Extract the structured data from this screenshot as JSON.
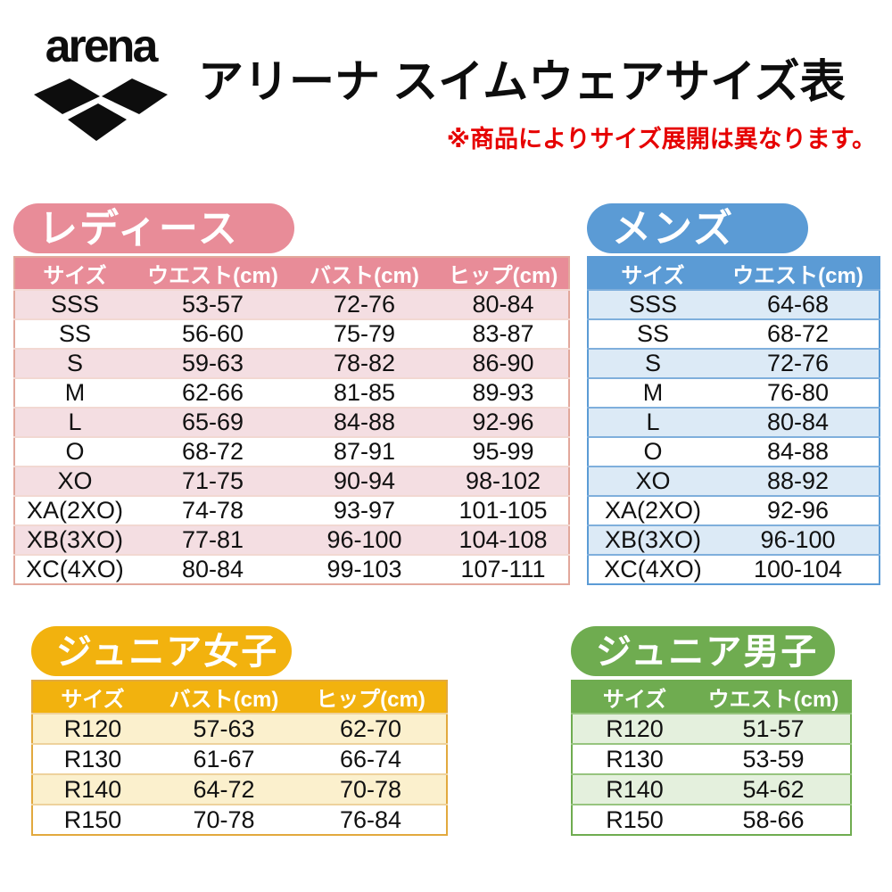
{
  "header": {
    "brand": "arena",
    "title": "アリーナ スイムウェアサイズ表",
    "note": "※商品によりサイズ展開は異なります。",
    "note_color": "#e60000"
  },
  "sections": [
    {
      "id": "ladies",
      "title": "レディース",
      "colors": {
        "accent": "#e88c98",
        "row_alt": "#f4dee2",
        "separator": "#f2d8d2",
        "border": "#e2a89c"
      },
      "columns": [
        "サイズ",
        "ウエスト(cm)",
        "バスト(cm)",
        "ヒップ(cm)"
      ],
      "rows": [
        [
          "SSS",
          "53-57",
          "72-76",
          "80-84"
        ],
        [
          "SS",
          "56-60",
          "75-79",
          "83-87"
        ],
        [
          "S",
          "59-63",
          "78-82",
          "86-90"
        ],
        [
          "M",
          "62-66",
          "81-85",
          "89-93"
        ],
        [
          "L",
          "65-69",
          "84-88",
          "92-96"
        ],
        [
          "O",
          "68-72",
          "87-91",
          "95-99"
        ],
        [
          "XO",
          "71-75",
          "90-94",
          "98-102"
        ],
        [
          "XA(2XO)",
          "74-78",
          "93-97",
          "101-105"
        ],
        [
          "XB(3XO)",
          "77-81",
          "96-100",
          "104-108"
        ],
        [
          "XC(4XO)",
          "80-84",
          "99-103",
          "107-111"
        ]
      ]
    },
    {
      "id": "mens",
      "title": "メンズ",
      "colors": {
        "accent": "#5b9bd5",
        "row_alt": "#dceaf6",
        "separator": "#7fafdc",
        "border": "#5b9bd5"
      },
      "columns": [
        "サイズ",
        "ウエスト(cm)"
      ],
      "rows": [
        [
          "SSS",
          "64-68"
        ],
        [
          "SS",
          "68-72"
        ],
        [
          "S",
          "72-76"
        ],
        [
          "M",
          "76-80"
        ],
        [
          "L",
          "80-84"
        ],
        [
          "O",
          "84-88"
        ],
        [
          "XO",
          "88-92"
        ],
        [
          "XA(2XO)",
          "92-96"
        ],
        [
          "XB(3XO)",
          "96-100"
        ],
        [
          "XC(4XO)",
          "100-104"
        ]
      ]
    },
    {
      "id": "junior_girls",
      "title": "ジュニア女子",
      "colors": {
        "accent": "#f2b20e",
        "row_alt": "#fbf0cd",
        "separator": "#eed29c",
        "border": "#e2a93e"
      },
      "columns": [
        "サイズ",
        "バスト(cm)",
        "ヒップ(cm)"
      ],
      "rows": [
        [
          "R120",
          "57-63",
          "62-70"
        ],
        [
          "R130",
          "61-67",
          "66-74"
        ],
        [
          "R140",
          "64-72",
          "70-78"
        ],
        [
          "R150",
          "70-78",
          "76-84"
        ]
      ]
    },
    {
      "id": "junior_boys",
      "title": "ジュニア男子",
      "colors": {
        "accent": "#6fac50",
        "row_alt": "#e4f0dd",
        "separator": "#97c47f",
        "border": "#6fac50"
      },
      "columns": [
        "サイズ",
        "ウエスト(cm)"
      ],
      "rows": [
        [
          "R120",
          "51-57"
        ],
        [
          "R130",
          "53-59"
        ],
        [
          "R140",
          "54-62"
        ],
        [
          "R150",
          "58-66"
        ]
      ]
    }
  ]
}
